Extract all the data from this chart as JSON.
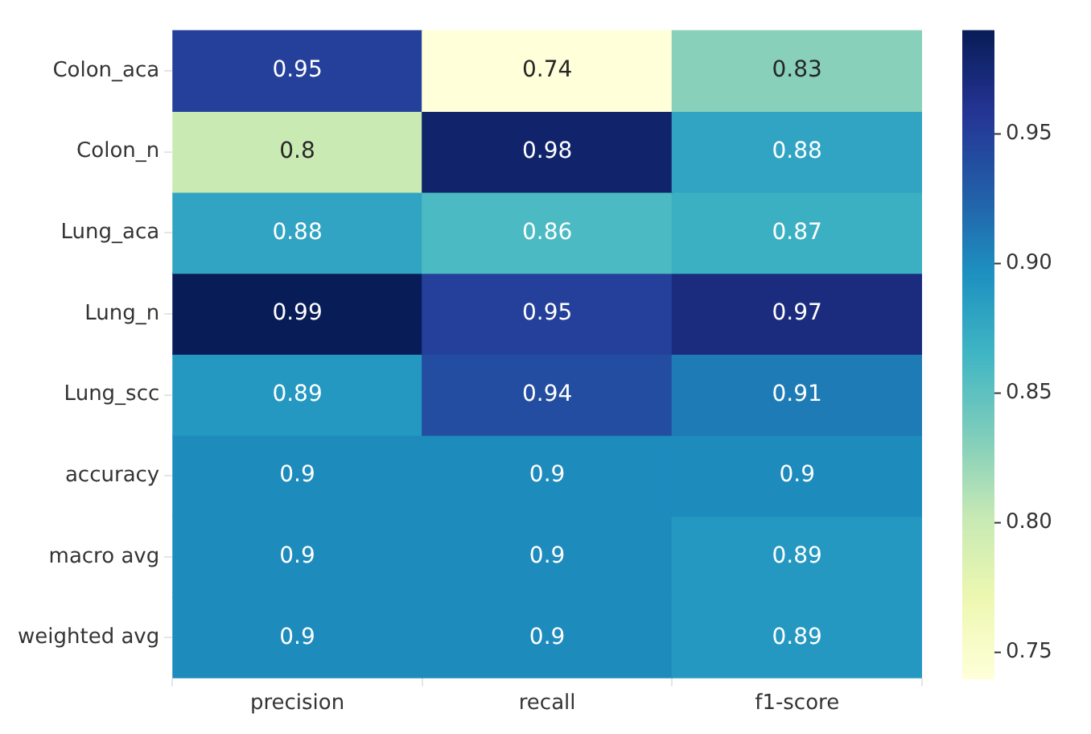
{
  "chart_data": {
    "type": "heatmap",
    "categories": [
      "precision",
      "recall",
      "f1-score"
    ],
    "y_categories": [
      "Colon_aca",
      "Colon_n",
      "Lung_aca",
      "Lung_n",
      "Lung_scc",
      "accuracy",
      "macro avg",
      "weighted avg"
    ],
    "cells": [
      [
        0.95,
        0.74,
        0.83
      ],
      [
        0.8,
        0.98,
        0.88
      ],
      [
        0.88,
        0.86,
        0.87
      ],
      [
        0.99,
        0.95,
        0.97
      ],
      [
        0.89,
        0.94,
        0.91
      ],
      [
        0.9,
        0.9,
        0.9
      ],
      [
        0.9,
        0.9,
        0.89
      ],
      [
        0.9,
        0.9,
        0.89
      ]
    ],
    "clim": [
      0.74,
      0.99
    ],
    "cticks": [
      0.75,
      {
        "value": 0.8,
        "label": "0.80"
      },
      0.85,
      {
        "value": 0.9,
        "label": "0.90"
      },
      0.95
    ],
    "data_labels": true
  }
}
